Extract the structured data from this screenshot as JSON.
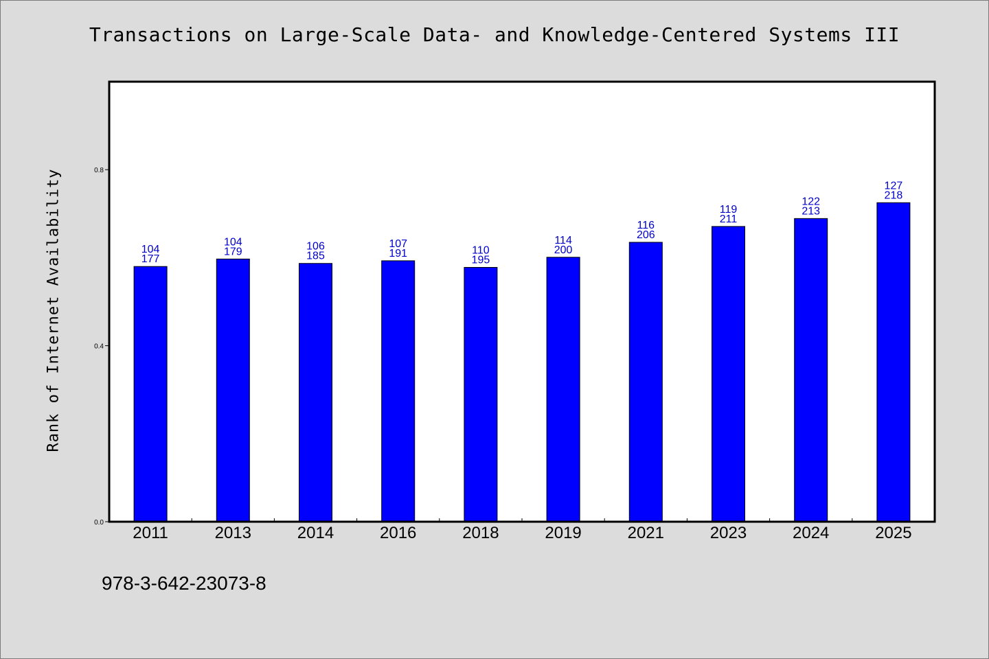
{
  "page": {
    "title": "Transactions on Large-Scale Data- and Knowledge-Centered Systems III",
    "footer_text": "978-3-642-23073-8"
  },
  "chart_data": {
    "type": "bar",
    "title": "Transactions on Large-Scale Data- and Knowledge-Centered Systems III",
    "xlabel": "",
    "ylabel": "Rank of Internet Availability",
    "ylim": [
      0,
      1.0
    ],
    "yticks": [
      0.0,
      0.4,
      0.8
    ],
    "ytick_labels": [
      "0.0",
      "0.4",
      "0.8"
    ],
    "grid": false,
    "bar_color": "#0000ff",
    "label_color": "#0000cc",
    "categories": [
      "2011",
      "2013",
      "2014",
      "2016",
      "2018",
      "2019",
      "2021",
      "2023",
      "2024",
      "2025"
    ],
    "values": [
      0.58,
      0.597,
      0.587,
      0.593,
      0.578,
      0.601,
      0.635,
      0.671,
      0.689,
      0.725
    ],
    "labels_top": [
      "104",
      "104",
      "106",
      "107",
      "110",
      "114",
      "116",
      "119",
      "122",
      "127"
    ],
    "labels_bottom": [
      "177",
      "179",
      "185",
      "191",
      "195",
      "200",
      "206",
      "211",
      "213",
      "218"
    ]
  }
}
